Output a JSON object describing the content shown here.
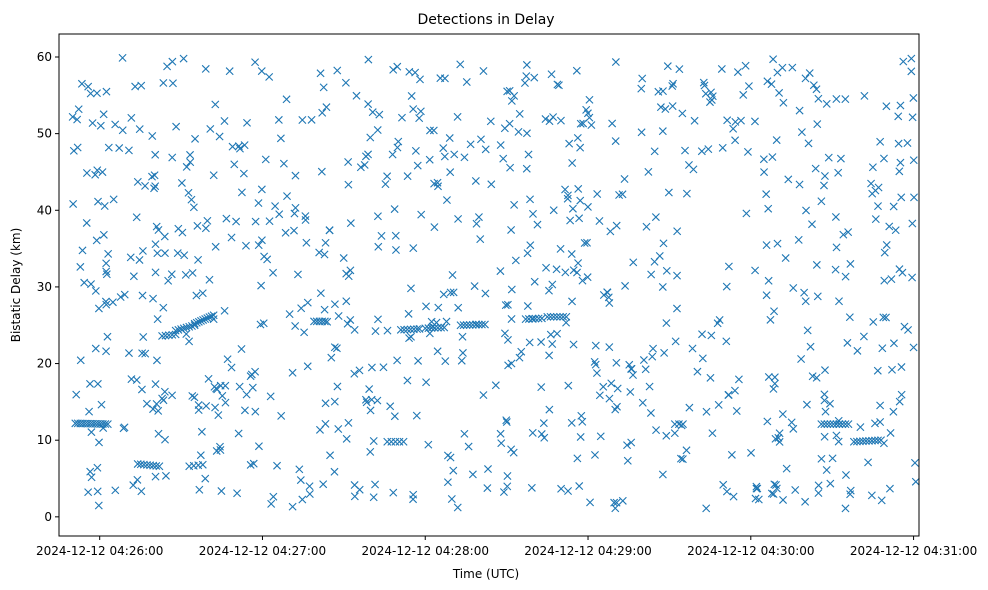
{
  "chart_data": {
    "type": "scatter",
    "title": "Detections in Delay",
    "xlabel": "Time (UTC)",
    "ylabel": "Bistatic Delay (km)",
    "marker": "x",
    "color": "#1f77b4",
    "xlim_seconds": [
      -15,
      302
    ],
    "ylim": [
      -2.5,
      63
    ],
    "x_ticks": [
      {
        "value": 0,
        "label": "2024-12-12 04:26:00"
      },
      {
        "value": 60,
        "label": "2024-12-12 04:27:00"
      },
      {
        "value": 120,
        "label": "2024-12-12 04:28:00"
      },
      {
        "value": 180,
        "label": "2024-12-12 04:29:00"
      },
      {
        "value": 240,
        "label": "2024-12-12 04:30:00"
      },
      {
        "value": 300,
        "label": "2024-12-12 04:31:00"
      }
    ],
    "y_ticks": [
      {
        "value": 0,
        "label": "0"
      },
      {
        "value": 10,
        "label": "10"
      },
      {
        "value": 20,
        "label": "20"
      },
      {
        "value": 30,
        "label": "30"
      },
      {
        "value": 40,
        "label": "40"
      },
      {
        "value": 50,
        "label": "50"
      },
      {
        "value": 60,
        "label": "60"
      }
    ],
    "track_segments": [
      {
        "t_start": -9,
        "t_end": 3,
        "delay_start": 12.2,
        "delay_end": 12.1,
        "count": 14
      },
      {
        "t_start": 14,
        "t_end": 22,
        "delay_start": 6.9,
        "delay_end": 6.6,
        "count": 8
      },
      {
        "t_start": 23,
        "t_end": 28,
        "delay_start": 23.6,
        "delay_end": 23.8,
        "count": 5
      },
      {
        "t_start": 28,
        "t_end": 35,
        "delay_start": 24.3,
        "delay_end": 25.0,
        "count": 8
      },
      {
        "t_start": 35,
        "t_end": 42,
        "delay_start": 25.2,
        "delay_end": 26.3,
        "count": 10
      },
      {
        "t_start": 33,
        "t_end": 38,
        "delay_start": 6.6,
        "delay_end": 6.8,
        "count": 4
      },
      {
        "t_start": 79,
        "t_end": 83,
        "delay_start": 25.5,
        "delay_end": 25.5,
        "count": 5
      },
      {
        "t_start": 106,
        "t_end": 112,
        "delay_start": 9.8,
        "delay_end": 9.8,
        "count": 5
      },
      {
        "t_start": 111,
        "t_end": 117,
        "delay_start": 24.4,
        "delay_end": 24.5,
        "count": 6
      },
      {
        "t_start": 120,
        "t_end": 127,
        "delay_start": 24.6,
        "delay_end": 24.7,
        "count": 7
      },
      {
        "t_start": 133,
        "t_end": 142,
        "delay_start": 25.0,
        "delay_end": 25.1,
        "count": 9
      },
      {
        "t_start": 157,
        "t_end": 163,
        "delay_start": 25.8,
        "delay_end": 25.9,
        "count": 6
      },
      {
        "t_start": 165,
        "t_end": 172,
        "delay_start": 26.1,
        "delay_end": 26.1,
        "count": 7
      },
      {
        "t_start": 212,
        "t_end": 215,
        "delay_start": 12.1,
        "delay_end": 12.1,
        "count": 3
      },
      {
        "t_start": 266,
        "t_end": 276,
        "delay_start": 12.1,
        "delay_end": 12.1,
        "count": 10
      },
      {
        "t_start": 278,
        "t_end": 288,
        "delay_start": 9.8,
        "delay_end": 10.0,
        "count": 10
      }
    ],
    "scatter_cloud": {
      "t_range": [
        -10,
        301
      ],
      "delay_range": [
        1,
        60
      ],
      "count": 880,
      "seed": 20241212
    }
  }
}
